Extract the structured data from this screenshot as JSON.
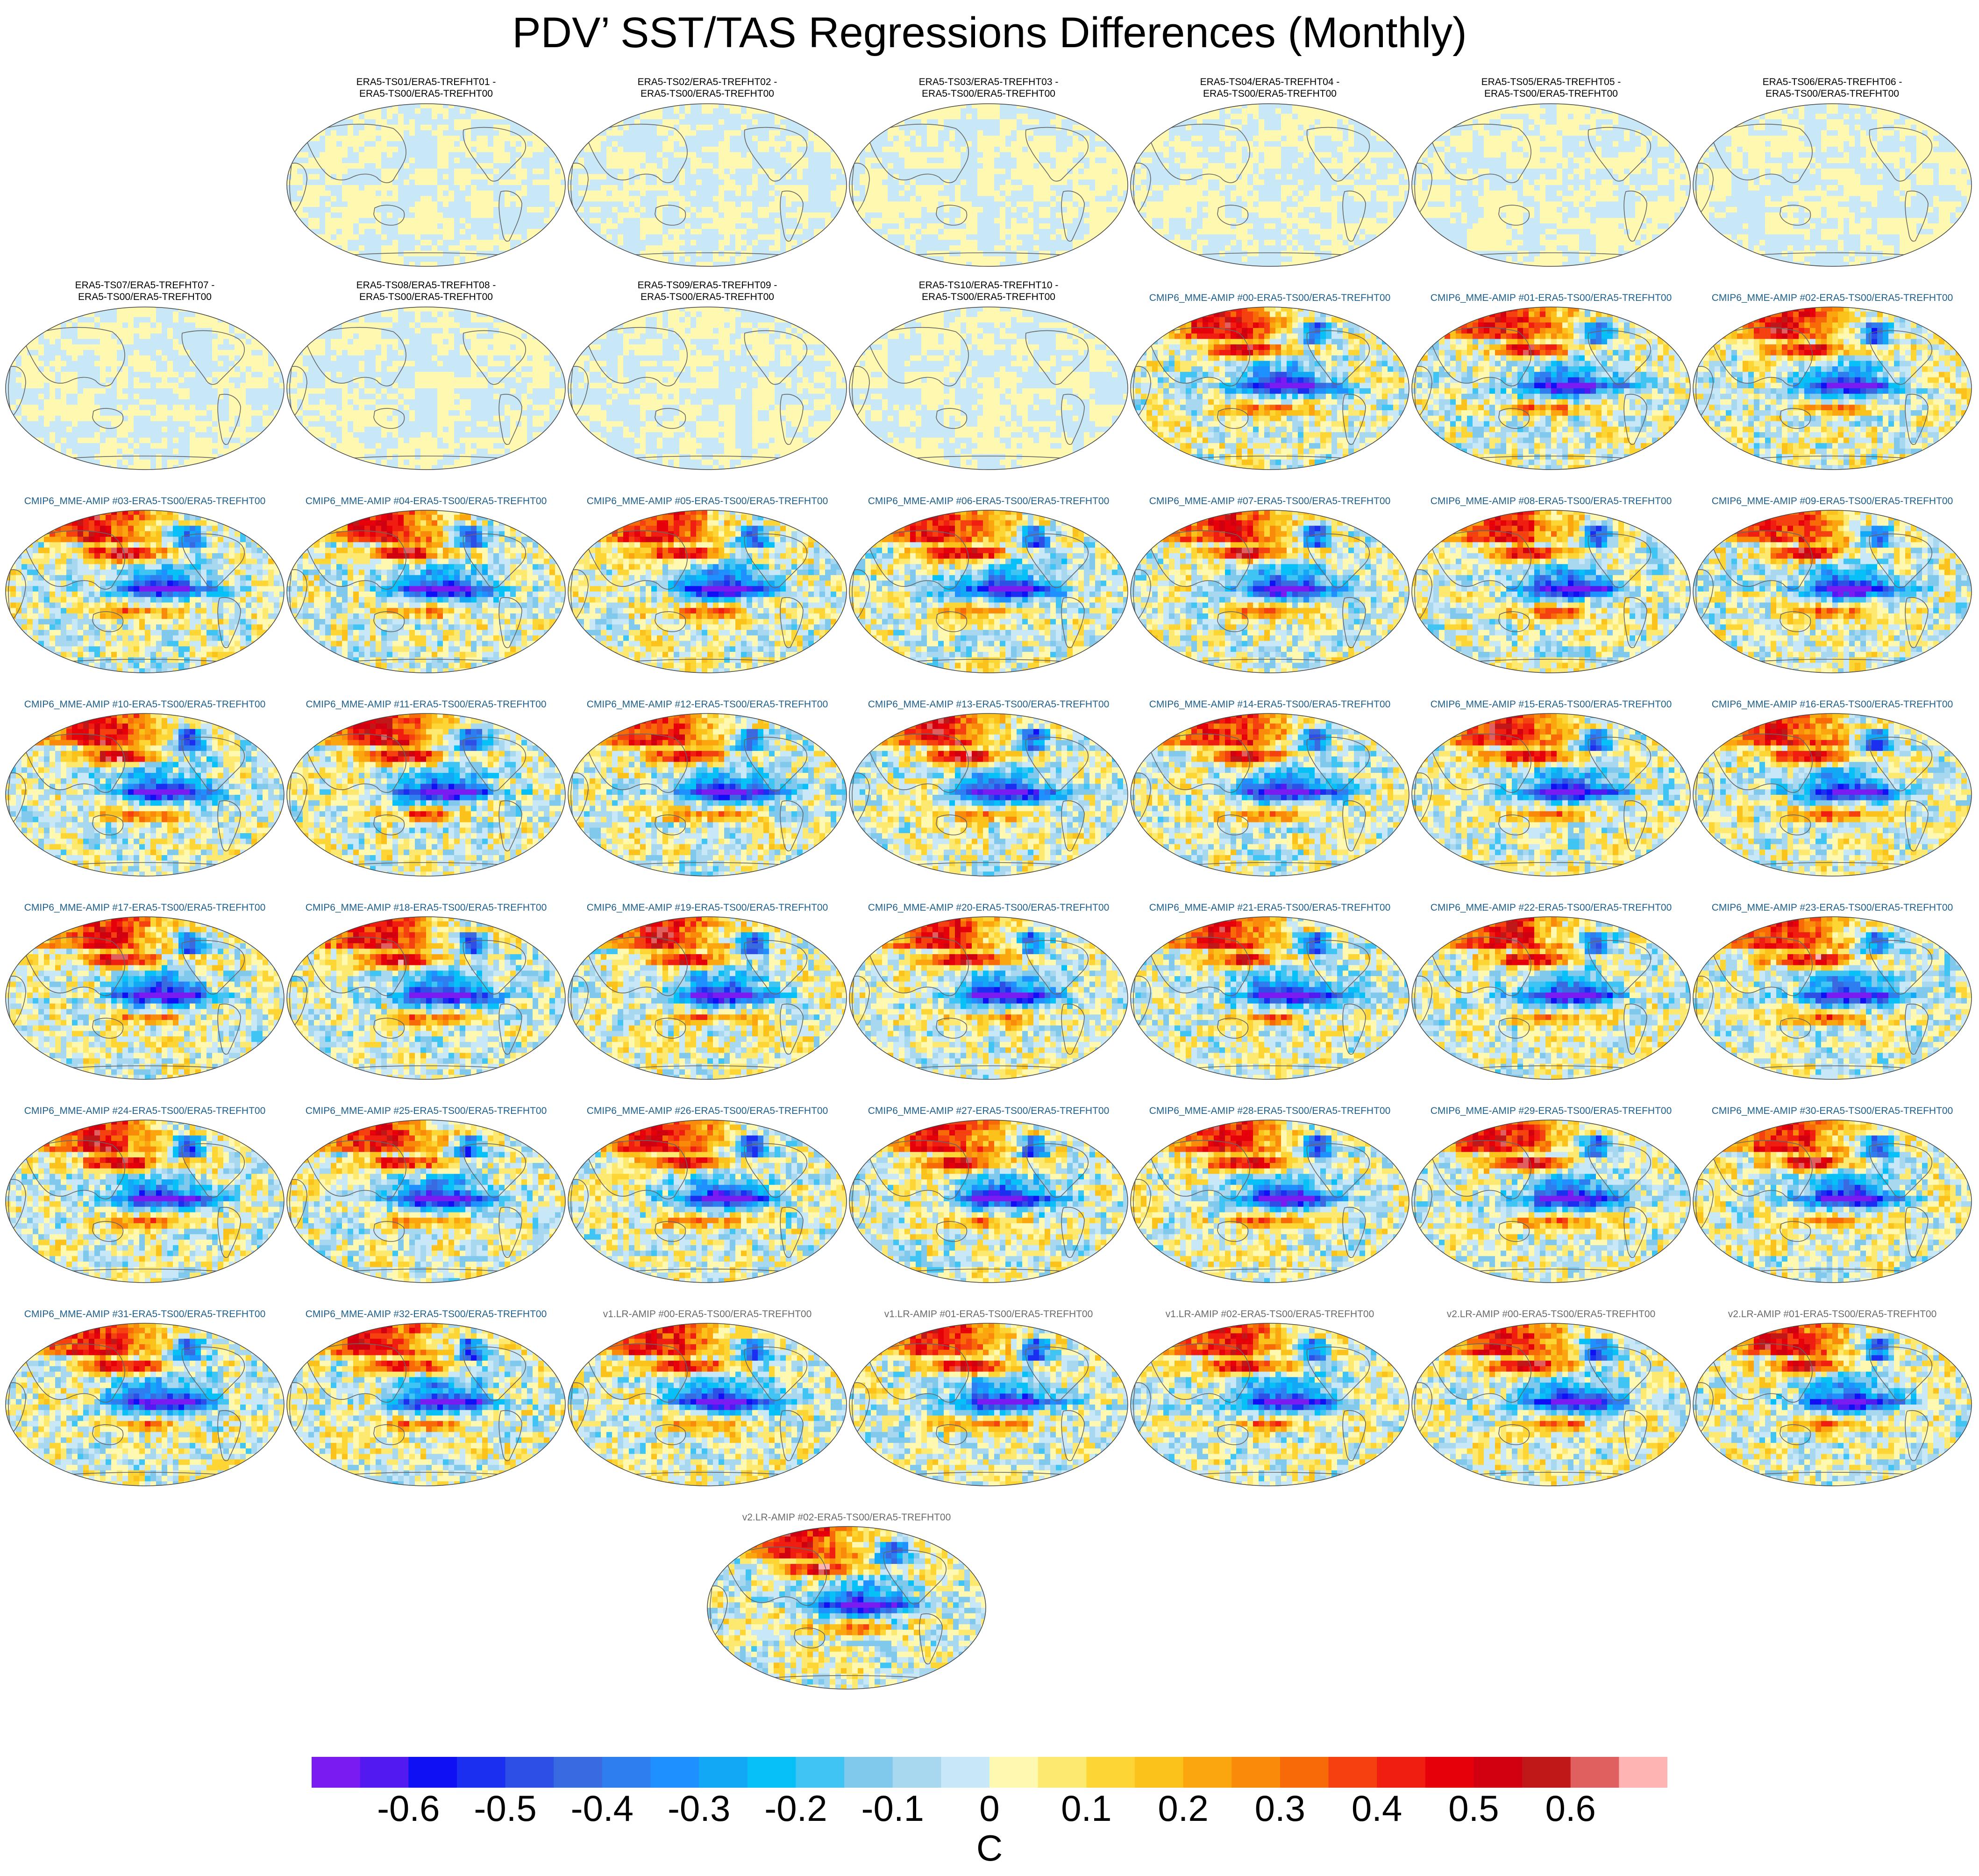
{
  "chart_data": {
    "type": "heatmap",
    "title": "PDV’ SST/TAS Regressions Differences (Monthly)",
    "projection": "Robinson (global, Pacific-centered)",
    "colorbar": {
      "unit": "C",
      "ticks": [
        "-0.6",
        "-0.5",
        "-0.4",
        "-0.3",
        "-0.2",
        "-0.1",
        "0",
        "0.1",
        "0.2",
        "0.3",
        "0.4",
        "0.5",
        "0.6"
      ],
      "levels": [
        -0.6,
        -0.55,
        -0.5,
        -0.45,
        -0.4,
        -0.35,
        -0.3,
        -0.25,
        -0.2,
        -0.15,
        -0.1,
        -0.05,
        0,
        0.05,
        0.1,
        0.15,
        0.2,
        0.25,
        0.3,
        0.35,
        0.4,
        0.45,
        0.5,
        0.55,
        0.6
      ],
      "colors": [
        "#7a1bf2",
        "#5219f0",
        "#1010f5",
        "#1a2ff0",
        "#2d4fe6",
        "#3a6ae0",
        "#2f7ef0",
        "#1f90ff",
        "#12a8f5",
        "#08c0f8",
        "#40c4f4",
        "#80c8ec",
        "#a8d8f0",
        "#c8e8f8",
        "#fff8b0",
        "#fde870",
        "#fdd636",
        "#fcc21c",
        "#fba60e",
        "#fa8a0a",
        "#f86a08",
        "#f54010",
        "#f01e10",
        "#e6000a",
        "#d00010",
        "#c01818",
        "#e06060",
        "#ffb4b4"
      ]
    },
    "panels": [
      {
        "group": "era",
        "line1": "ERA5-TS01/ERA5-TREFHT01 -",
        "line2": "ERA5-TS00/ERA5-TREFHT00",
        "amp": 0.05
      },
      {
        "group": "era",
        "line1": "ERA5-TS02/ERA5-TREFHT02 -",
        "line2": "ERA5-TS00/ERA5-TREFHT00",
        "amp": 0.05
      },
      {
        "group": "era",
        "line1": "ERA5-TS03/ERA5-TREFHT03 -",
        "line2": "ERA5-TS00/ERA5-TREFHT00",
        "amp": 0.05
      },
      {
        "group": "era",
        "line1": "ERA5-TS04/ERA5-TREFHT04 -",
        "line2": "ERA5-TS00/ERA5-TREFHT00",
        "amp": 0.05
      },
      {
        "group": "era",
        "line1": "ERA5-TS05/ERA5-TREFHT05 -",
        "line2": "ERA5-TS00/ERA5-TREFHT00",
        "amp": 0.05
      },
      {
        "group": "era",
        "line1": "ERA5-TS06/ERA5-TREFHT06 -",
        "line2": "ERA5-TS00/ERA5-TREFHT00",
        "amp": 0.05
      },
      {
        "group": "era",
        "line1": "ERA5-TS07/ERA5-TREFHT07 -",
        "line2": "ERA5-TS00/ERA5-TREFHT00",
        "amp": 0.05
      },
      {
        "group": "era",
        "line1": "ERA5-TS08/ERA5-TREFHT08 -",
        "line2": "ERA5-TS00/ERA5-TREFHT00",
        "amp": 0.05
      },
      {
        "group": "era",
        "line1": "ERA5-TS09/ERA5-TREFHT09 -",
        "line2": "ERA5-TS00/ERA5-TREFHT00",
        "amp": 0.05
      },
      {
        "group": "era",
        "line1": "ERA5-TS10/ERA5-TREFHT10 -",
        "line2": "ERA5-TS00/ERA5-TREFHT00",
        "amp": 0.05
      },
      {
        "group": "cmip",
        "line1": "CMIP6_MME-AMIP  #00-ERA5-TS00/ERA5-TREFHT00",
        "amp": 0.6
      },
      {
        "group": "cmip",
        "line1": "CMIP6_MME-AMIP  #01-ERA5-TS00/ERA5-TREFHT00",
        "amp": 0.6
      },
      {
        "group": "cmip",
        "line1": "CMIP6_MME-AMIP  #02-ERA5-TS00/ERA5-TREFHT00",
        "amp": 0.6
      },
      {
        "group": "cmip",
        "line1": "CMIP6_MME-AMIP  #03-ERA5-TS00/ERA5-TREFHT00",
        "amp": 0.6
      },
      {
        "group": "cmip",
        "line1": "CMIP6_MME-AMIP  #04-ERA5-TS00/ERA5-TREFHT00",
        "amp": 0.6
      },
      {
        "group": "cmip",
        "line1": "CMIP6_MME-AMIP  #05-ERA5-TS00/ERA5-TREFHT00",
        "amp": 0.6
      },
      {
        "group": "cmip",
        "line1": "CMIP6_MME-AMIP  #06-ERA5-TS00/ERA5-TREFHT00",
        "amp": 0.6
      },
      {
        "group": "cmip",
        "line1": "CMIP6_MME-AMIP  #07-ERA5-TS00/ERA5-TREFHT00",
        "amp": 0.6
      },
      {
        "group": "cmip",
        "line1": "CMIP6_MME-AMIP  #08-ERA5-TS00/ERA5-TREFHT00",
        "amp": 0.6
      },
      {
        "group": "cmip",
        "line1": "CMIP6_MME-AMIP  #09-ERA5-TS00/ERA5-TREFHT00",
        "amp": 0.6
      },
      {
        "group": "cmip",
        "line1": "CMIP6_MME-AMIP  #10-ERA5-TS00/ERA5-TREFHT00",
        "amp": 0.6
      },
      {
        "group": "cmip",
        "line1": "CMIP6_MME-AMIP  #11-ERA5-TS00/ERA5-TREFHT00",
        "amp": 0.6
      },
      {
        "group": "cmip",
        "line1": "CMIP6_MME-AMIP  #12-ERA5-TS00/ERA5-TREFHT00",
        "amp": 0.6
      },
      {
        "group": "cmip",
        "line1": "CMIP6_MME-AMIP  #13-ERA5-TS00/ERA5-TREFHT00",
        "amp": 0.6
      },
      {
        "group": "cmip",
        "line1": "CMIP6_MME-AMIP  #14-ERA5-TS00/ERA5-TREFHT00",
        "amp": 0.6
      },
      {
        "group": "cmip",
        "line1": "CMIP6_MME-AMIP  #15-ERA5-TS00/ERA5-TREFHT00",
        "amp": 0.6
      },
      {
        "group": "cmip",
        "line1": "CMIP6_MME-AMIP  #16-ERA5-TS00/ERA5-TREFHT00",
        "amp": 0.6
      },
      {
        "group": "cmip",
        "line1": "CMIP6_MME-AMIP  #17-ERA5-TS00/ERA5-TREFHT00",
        "amp": 0.6
      },
      {
        "group": "cmip",
        "line1": "CMIP6_MME-AMIP  #18-ERA5-TS00/ERA5-TREFHT00",
        "amp": 0.6
      },
      {
        "group": "cmip",
        "line1": "CMIP6_MME-AMIP  #19-ERA5-TS00/ERA5-TREFHT00",
        "amp": 0.6
      },
      {
        "group": "cmip",
        "line1": "CMIP6_MME-AMIP  #20-ERA5-TS00/ERA5-TREFHT00",
        "amp": 0.6
      },
      {
        "group": "cmip",
        "line1": "CMIP6_MME-AMIP  #21-ERA5-TS00/ERA5-TREFHT00",
        "amp": 0.6
      },
      {
        "group": "cmip",
        "line1": "CMIP6_MME-AMIP  #22-ERA5-TS00/ERA5-TREFHT00",
        "amp": 0.6
      },
      {
        "group": "cmip",
        "line1": "CMIP6_MME-AMIP  #23-ERA5-TS00/ERA5-TREFHT00",
        "amp": 0.6
      },
      {
        "group": "cmip",
        "line1": "CMIP6_MME-AMIP  #24-ERA5-TS00/ERA5-TREFHT00",
        "amp": 0.6
      },
      {
        "group": "cmip",
        "line1": "CMIP6_MME-AMIP  #25-ERA5-TS00/ERA5-TREFHT00",
        "amp": 0.6
      },
      {
        "group": "cmip",
        "line1": "CMIP6_MME-AMIP  #26-ERA5-TS00/ERA5-TREFHT00",
        "amp": 0.6
      },
      {
        "group": "cmip",
        "line1": "CMIP6_MME-AMIP  #27-ERA5-TS00/ERA5-TREFHT00",
        "amp": 0.6
      },
      {
        "group": "cmip",
        "line1": "CMIP6_MME-AMIP  #28-ERA5-TS00/ERA5-TREFHT00",
        "amp": 0.6
      },
      {
        "group": "cmip",
        "line1": "CMIP6_MME-AMIP  #29-ERA5-TS00/ERA5-TREFHT00",
        "amp": 0.6
      },
      {
        "group": "cmip",
        "line1": "CMIP6_MME-AMIP  #30-ERA5-TS00/ERA5-TREFHT00",
        "amp": 0.6
      },
      {
        "group": "cmip",
        "line1": "CMIP6_MME-AMIP  #31-ERA5-TS00/ERA5-TREFHT00",
        "amp": 0.6
      },
      {
        "group": "cmip",
        "line1": "CMIP6_MME-AMIP  #32-ERA5-TS00/ERA5-TREFHT00",
        "amp": 0.6
      },
      {
        "group": "v1",
        "line1": "v1.LR-AMIP  #00-ERA5-TS00/ERA5-TREFHT00",
        "amp": 0.6
      },
      {
        "group": "v1",
        "line1": "v1.LR-AMIP  #01-ERA5-TS00/ERA5-TREFHT00",
        "amp": 0.6
      },
      {
        "group": "v1",
        "line1": "v1.LR-AMIP  #02-ERA5-TS00/ERA5-TREFHT00",
        "amp": 0.6
      },
      {
        "group": "v2",
        "line1": "v2.LR-AMIP  #00-ERA5-TS00/ERA5-TREFHT00",
        "amp": 0.6
      },
      {
        "group": "v2",
        "line1": "v2.LR-AMIP  #01-ERA5-TS00/ERA5-TREFHT00",
        "amp": 0.6
      },
      {
        "group": "v2",
        "line1": "v2.LR-AMIP  #02-ERA5-TS00/ERA5-TREFHT00",
        "amp": 0.6
      }
    ]
  }
}
